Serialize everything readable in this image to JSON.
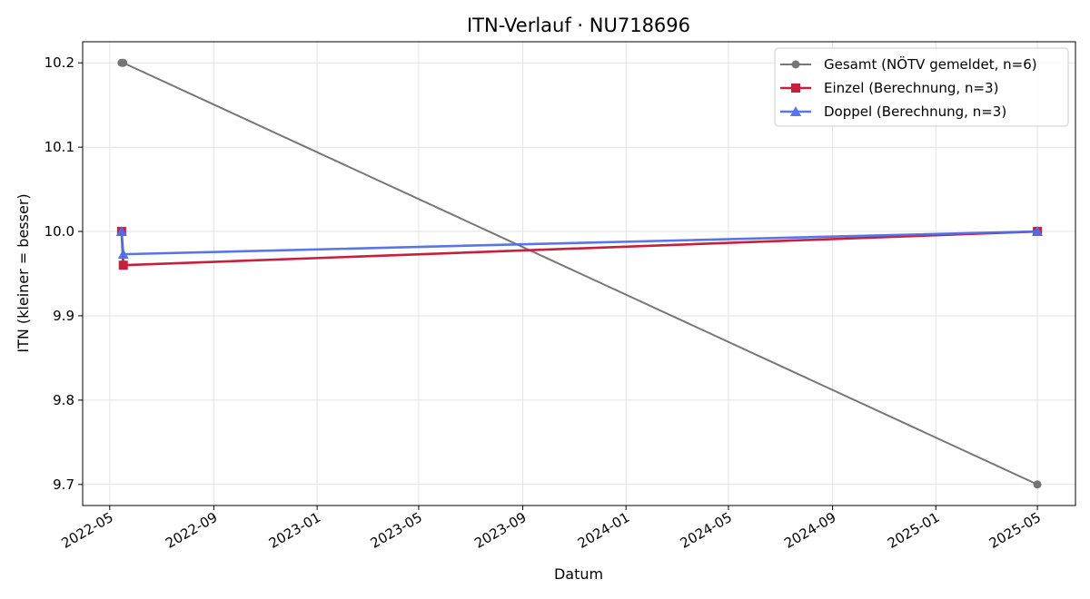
{
  "chart_data": {
    "type": "line",
    "title": "ITN-Verlauf · NU718696",
    "xlabel": "Datum",
    "ylabel": "ITN  (kleiner = besser)",
    "x_axis": {
      "kind": "date",
      "range": [
        "2022-03-30",
        "2025-06-15"
      ],
      "ticks": [
        "2022-05-01",
        "2022-09-01",
        "2023-01-01",
        "2023-05-01",
        "2023-09-01",
        "2024-01-01",
        "2024-05-01",
        "2024-09-01",
        "2025-01-01",
        "2025-05-01"
      ],
      "tick_labels": [
        "2022-05",
        "2022-09",
        "2023-01",
        "2023-05",
        "2023-09",
        "2024-01",
        "2024-05",
        "2024-09",
        "2025-01",
        "2025-05"
      ]
    },
    "y_axis": {
      "range": [
        9.675,
        10.225
      ],
      "ticks": [
        9.7,
        9.8,
        9.9,
        10.0,
        10.1,
        10.2
      ],
      "tick_labels": [
        "9.7",
        "9.8",
        "9.9",
        "10.0",
        "10.1",
        "10.2"
      ]
    },
    "grid": true,
    "legend_position": "top-right",
    "series": [
      {
        "name": "Gesamt (NÖTV gemeldet, n=6)",
        "color": "#555555",
        "marker": "circle",
        "points": [
          {
            "x": "2022-05-15",
            "y": 10.2
          },
          {
            "x": "2022-05-17",
            "y": 10.2
          },
          {
            "x": "2025-05-01",
            "y": 9.7
          }
        ]
      },
      {
        "name": "Einzel (Berechnung, n=3)",
        "color": "#c8203c",
        "marker": "square",
        "points": [
          {
            "x": "2022-05-15",
            "y": 10.0
          },
          {
            "x": "2022-05-17",
            "y": 9.96
          },
          {
            "x": "2025-05-01",
            "y": 10.0
          }
        ]
      },
      {
        "name": "Doppel (Berechnung, n=3)",
        "color": "#4f6ee8",
        "marker": "triangle",
        "points": [
          {
            "x": "2022-05-15",
            "y": 10.0
          },
          {
            "x": "2022-05-17",
            "y": 9.973
          },
          {
            "x": "2025-05-01",
            "y": 10.0
          }
        ]
      }
    ]
  }
}
